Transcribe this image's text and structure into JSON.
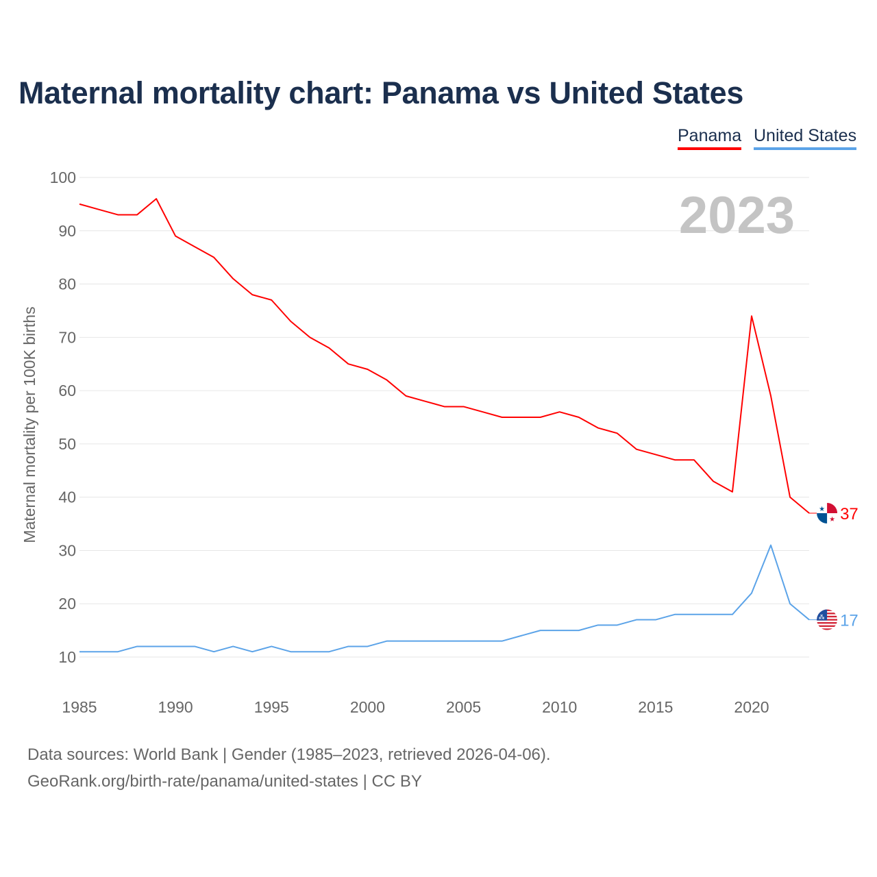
{
  "title": "Maternal mortality chart: Panama vs United States",
  "legend": {
    "panama": "Panama",
    "united_states": "United States"
  },
  "year_label": "2023",
  "footer": {
    "line1": "Data sources: World Bank | Gender (1985–2023, retrieved 2026-04-06).",
    "line2": "GeoRank.org/birth-rate/panama/united-states | CC BY"
  },
  "chart_data": {
    "type": "line",
    "title": "Maternal mortality chart: Panama vs United States",
    "xlabel": "",
    "ylabel": "Maternal mortality per 100K births",
    "xlim": [
      1985,
      2023
    ],
    "ylim": [
      10,
      100
    ],
    "grid": true,
    "legend_position": "top-right",
    "x_ticks": [
      "1985",
      "1990",
      "1995",
      "2000",
      "2005",
      "2010",
      "2015",
      "2020"
    ],
    "y_ticks": [
      "10",
      "20",
      "30",
      "40",
      "50",
      "60",
      "70",
      "80",
      "90",
      "100"
    ],
    "x": [
      1985,
      1986,
      1987,
      1988,
      1989,
      1990,
      1991,
      1992,
      1993,
      1994,
      1995,
      1996,
      1997,
      1998,
      1999,
      2000,
      2001,
      2002,
      2003,
      2004,
      2005,
      2006,
      2007,
      2008,
      2009,
      2010,
      2011,
      2012,
      2013,
      2014,
      2015,
      2016,
      2017,
      2018,
      2019,
      2020,
      2021,
      2022,
      2023
    ],
    "series": [
      {
        "name": "Panama",
        "color": "#ff0000",
        "end_label": "37",
        "values": [
          95,
          94,
          93,
          93,
          96,
          89,
          87,
          85,
          81,
          78,
          77,
          73,
          70,
          68,
          65,
          64,
          62,
          59,
          58,
          57,
          57,
          56,
          55,
          55,
          55,
          56,
          55,
          53,
          52,
          49,
          48,
          47,
          47,
          43,
          41,
          74,
          59,
          40,
          37
        ]
      },
      {
        "name": "United States",
        "color": "#5ba3e8",
        "end_label": "17",
        "values": [
          11,
          11,
          11,
          12,
          12,
          12,
          12,
          11,
          12,
          11,
          12,
          11,
          11,
          11,
          12,
          12,
          13,
          13,
          13,
          13,
          13,
          13,
          13,
          14,
          15,
          15,
          15,
          16,
          16,
          17,
          17,
          18,
          18,
          18,
          18,
          22,
          31,
          20,
          17
        ]
      }
    ]
  }
}
